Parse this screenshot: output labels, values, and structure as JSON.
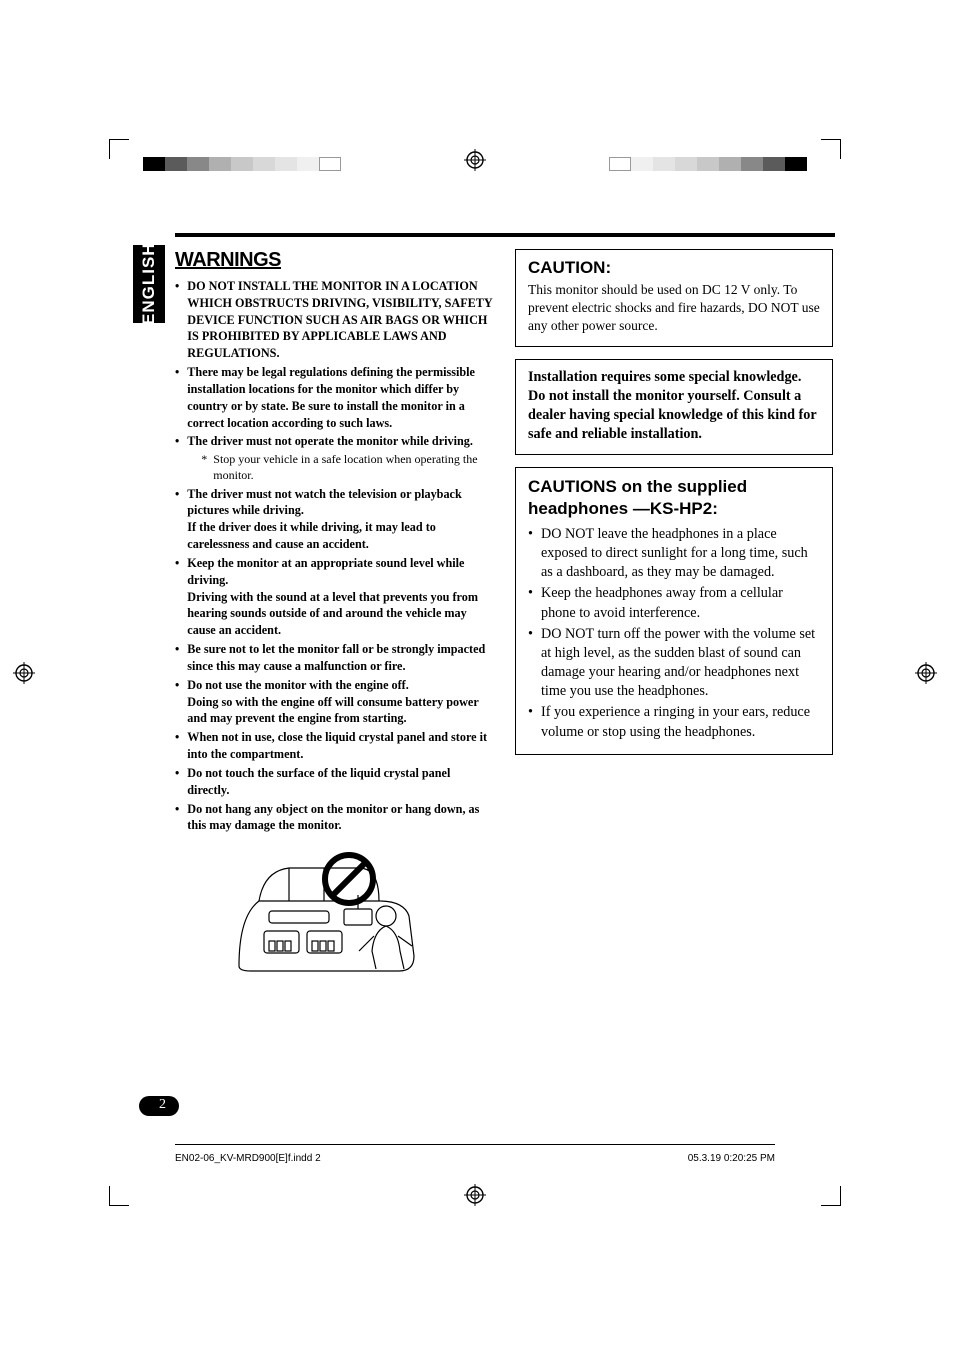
{
  "lang_tab": "ENGLISH",
  "warnings": {
    "title": "WARNINGS",
    "items": [
      {
        "text": "DO NOT INSTALL THE MONITOR IN A LOCATION WHICH OBSTRUCTS DRIVING, VISIBILITY, SAFETY DEVICE FUNCTION SUCH AS AIR BAGS OR WHICH IS PROHIBITED BY APPLICABLE LAWS AND REGULATIONS.",
        "bold": true
      },
      {
        "text": "There may be legal regulations defining the permissible installation locations for the monitor which differ by country or by state. Be sure to install the monitor in a correct location according to such laws.",
        "bold": true
      },
      {
        "text": "The driver must not operate the monitor while driving.",
        "bold": true,
        "sub": "Stop your vehicle in a safe location when operating the monitor."
      },
      {
        "text": "The driver must not watch the television or playback pictures while driving.",
        "bold": true,
        "cont": "If the driver does it while driving, it may lead to carelessness and cause an accident."
      },
      {
        "text": "Keep the monitor at an appropriate sound level while driving.",
        "bold": true,
        "cont": "Driving with the sound at a level that prevents you from hearing sounds outside of and around the vehicle may cause an accident."
      },
      {
        "text": "Be sure not to let the monitor fall or be strongly impacted since this may cause a malfunction or fire.",
        "bold": true
      },
      {
        "text": "Do not use the monitor with the engine off.",
        "bold": true,
        "cont": "Doing so with the engine off will consume battery power and may prevent the engine from starting."
      },
      {
        "text": "When not in use, close the liquid crystal panel and store it into the compartment.",
        "bold": true
      },
      {
        "text": "Do not touch the surface of the liquid crystal panel directly.",
        "bold": true
      },
      {
        "text": "Do not hang any object on the monitor or hang down, as this may damage the monitor.",
        "bold": true
      }
    ]
  },
  "caution_box": {
    "title": "CAUTION:",
    "body": "This monitor should be used on DC 12 V only. To prevent electric shocks and fire hazards, DO NOT use any other power source."
  },
  "install_box": {
    "line1": "Installation requires some special knowledge.",
    "line2": "Do not install the monitor yourself. Consult a dealer having special knowledge of this kind for safe and reliable installation."
  },
  "hp_box": {
    "title": "CAUTIONS on the supplied headphones —KS-HP2:",
    "items": [
      "DO NOT leave the headphones in a place exposed to direct sunlight for a long time, such as a dashboard, as they may be damaged.",
      "Keep the headphones away from a cellular phone to avoid interference.",
      "DO NOT turn off the power with the volume set at high level, as the sudden blast of sound can damage your hearing and/or headphones next time you use the headphones.",
      "If you experience a ringing in your ears, reduce volume or stop using the headphones."
    ]
  },
  "page_number": "2",
  "footer_left": "EN02-06_KV-MRD900[E]f.indd   2",
  "footer_right": "05.3.19   0:20:25 PM",
  "color_bars_left": [
    "#000000",
    "#5b5b5b",
    "#888888",
    "#b0b0b0",
    "#c8c8c8",
    "#d8d8d8",
    "#e4e4e4",
    "#f0f0f0",
    "#ffffff"
  ],
  "color_bars_right": [
    "#ffffff",
    "#f0f0f0",
    "#e4e4e4",
    "#d8d8d8",
    "#c8c8c8",
    "#b0b0b0",
    "#888888",
    "#5b5b5b",
    "#000000"
  ]
}
